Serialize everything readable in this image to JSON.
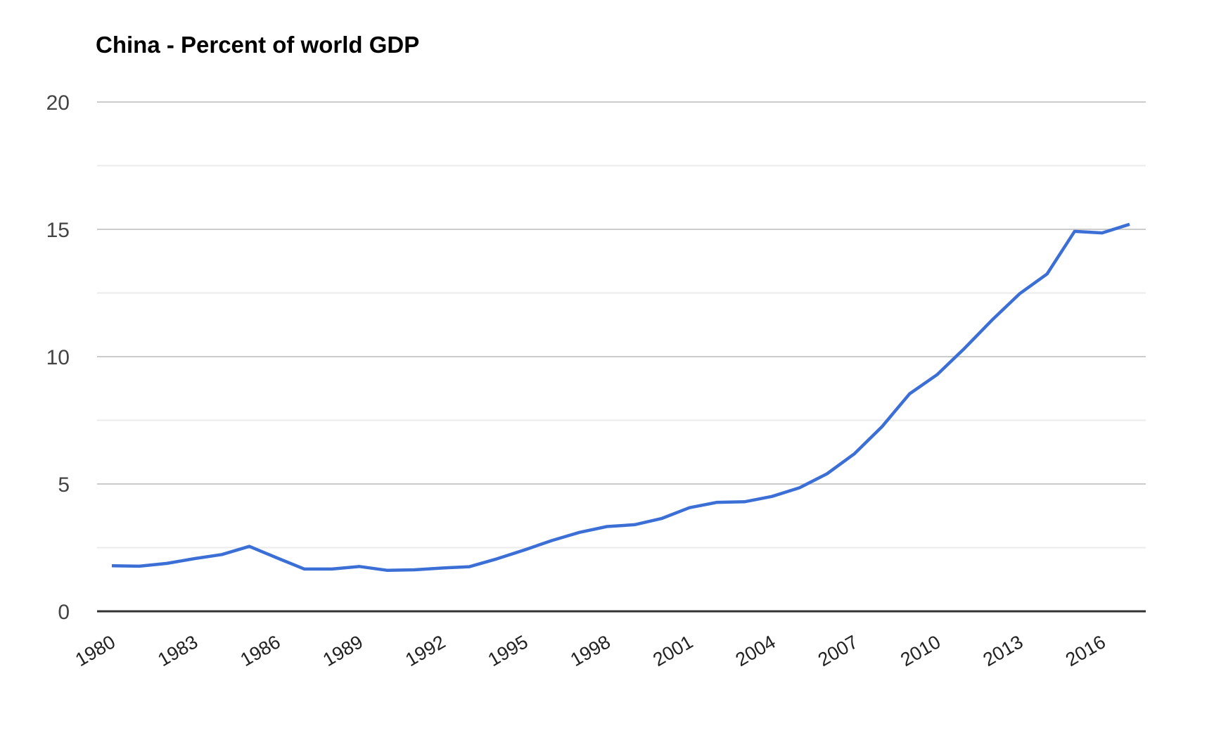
{
  "chart_data": {
    "type": "line",
    "title": "China - Percent of world GDP",
    "xlabel": "",
    "ylabel": "",
    "ylim": [
      0,
      20
    ],
    "xlim": [
      1980,
      2017
    ],
    "grid": true,
    "legend": "none",
    "y_ticks": [
      "0",
      "5",
      "10",
      "15",
      "20"
    ],
    "y_tick_values": [
      0,
      5,
      10,
      15,
      20
    ],
    "y_minor_tick_values": [
      2.5,
      7.5,
      12.5,
      17.5
    ],
    "x_tick_labels": [
      "1980",
      "1983",
      "1986",
      "1989",
      "1992",
      "1995",
      "1998",
      "2001",
      "2004",
      "2007",
      "2010",
      "2013",
      "2016"
    ],
    "series": [
      {
        "name": "China",
        "color": "#3b6fd6",
        "x": [
          1980,
          1981,
          1982,
          1983,
          1984,
          1985,
          1986,
          1987,
          1988,
          1989,
          1990,
          1991,
          1992,
          1993,
          1994,
          1995,
          1996,
          1997,
          1998,
          1999,
          2000,
          2001,
          2002,
          2003,
          2004,
          2005,
          2006,
          2007,
          2008,
          2009,
          2010,
          2011,
          2012,
          2013,
          2014,
          2015,
          2016,
          2017
        ],
        "values": [
          1.79,
          1.77,
          1.88,
          2.07,
          2.23,
          2.55,
          2.1,
          1.66,
          1.66,
          1.76,
          1.61,
          1.63,
          1.7,
          1.75,
          2.06,
          2.41,
          2.78,
          3.1,
          3.33,
          3.4,
          3.65,
          4.07,
          4.28,
          4.3,
          4.51,
          4.85,
          5.4,
          6.19,
          7.25,
          8.54,
          9.29,
          10.33,
          11.44,
          12.47,
          13.25,
          14.92,
          14.86,
          15.2
        ]
      }
    ]
  }
}
